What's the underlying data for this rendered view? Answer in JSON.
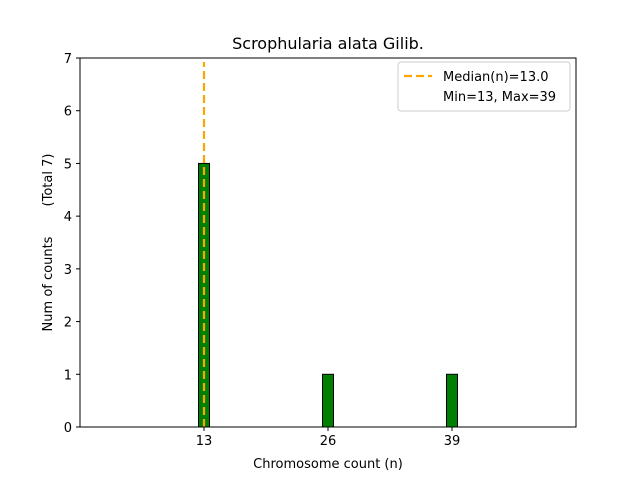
{
  "chart_data": {
    "type": "bar",
    "title": "Scrophularia alata Gilib.",
    "xlabel": "Chromosome count (n)",
    "ylabel": "Num of counts",
    "ylabel_total": "(Total 7)",
    "x": [
      13,
      26,
      39
    ],
    "values": [
      5,
      1,
      1
    ],
    "xlim": [
      0,
      52
    ],
    "ylim": [
      0,
      7
    ],
    "xticks": [
      13,
      26,
      39
    ],
    "yticks": [
      0,
      1,
      2,
      3,
      4,
      5,
      6,
      7
    ],
    "bar_color": "#008000",
    "bar_edge_color": "#000000",
    "median": 13.0,
    "median_color": "#FFA500",
    "legend": {
      "placement": "top-right",
      "entries": [
        "Median(n)=13.0",
        "Min=13, Max=39"
      ]
    },
    "grid": false
  }
}
